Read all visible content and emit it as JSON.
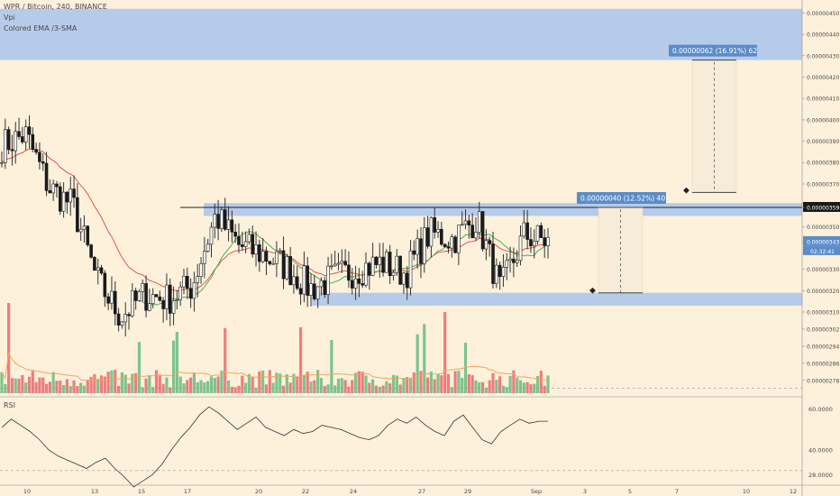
{
  "header": {
    "symbol_line": "WPR / Bitcoin, 240, BINANCE",
    "indicator_1": "Vpi",
    "indicator_2": "Colored EMA /3-SMA"
  },
  "rsi_label": "RSI",
  "colors": {
    "background": "#fdf1dc",
    "zone_fill": "#a9c4ec",
    "up": "#7cc48c",
    "down": "#ef7d7d",
    "ema": "#e8544c",
    "sma": "#4caf50",
    "volume_ma": "#f4a45c",
    "range_fill": "#f7ecd8",
    "measure_label": "#5b8cc8"
  },
  "price_axis": {
    "labels": [
      "0.00000450",
      "0.00000440",
      "0.00000430",
      "0.00000420",
      "0.00000410",
      "0.00000400",
      "0.00000390",
      "0.00000380",
      "0.00000370",
      "0.00000359",
      "0.00000350",
      "0.00000343",
      "0.00000330",
      "0.00000320",
      "0.00000310",
      "0.00000302",
      "0.00000294",
      "0.00000286",
      "0.00000278"
    ],
    "current_price": "0.00000343",
    "countdown": "02:32:41",
    "line_price": "0.00000359"
  },
  "rsi_axis": {
    "labels": [
      "60.0000",
      "40.0000",
      "28.0000"
    ]
  },
  "time_axis": {
    "labels": [
      "10",
      "13",
      "15",
      "17",
      "20",
      "22",
      "24",
      "27",
      "29",
      "Sep",
      "3",
      "5",
      "7",
      "10",
      "12"
    ]
  },
  "measurements": [
    {
      "text": "0.00000040 (12.52%) 40"
    },
    {
      "text": "0.00000062 (16.91%) 62"
    }
  ],
  "chart_data": {
    "type": "candlestick",
    "instrument": "WPR / Bitcoin",
    "timeframe": "240",
    "exchange": "BINANCE",
    "y_range": [
      2.72e-06,
      4.54e-06
    ],
    "horizontal_zones": [
      {
        "from": 4.28e-06,
        "to": 4.52e-06
      },
      {
        "from": 3.55e-06,
        "to": 3.61e-06
      },
      {
        "from": 3.13e-06,
        "to": 3.19e-06
      }
    ],
    "horizontal_line": 3.59e-06,
    "price_range_measures": [
      {
        "from": 3.19e-06,
        "to": 3.59e-06,
        "delta": "0.00000040",
        "percent": "12.52%",
        "ticks": 40
      },
      {
        "from": 3.66e-06,
        "to": 4.28e-06,
        "delta": "0.00000062",
        "percent": "16.91%",
        "ticks": 62
      }
    ],
    "close_path": [
      [
        "Aug 9",
        3.88e-06
      ],
      [
        "Aug 10",
        3.93e-06
      ],
      [
        "Aug 11",
        3.68e-06
      ],
      [
        "Aug 12",
        3.6e-06
      ],
      [
        "Aug 13",
        3.25e-06
      ],
      [
        "Aug 14",
        3.08e-06
      ],
      [
        "Aug 15",
        3.18e-06
      ],
      [
        "Aug 16",
        3.16e-06
      ],
      [
        "Aug 17",
        3.22e-06
      ],
      [
        "Aug 18",
        3.55e-06
      ],
      [
        "Aug 19",
        3.41e-06
      ],
      [
        "Aug 20",
        3.37e-06
      ],
      [
        "Aug 21",
        3.31e-06
      ],
      [
        "Aug 22",
        3.21e-06
      ],
      [
        "Aug 23",
        3.26e-06
      ],
      [
        "Aug 24",
        3.3e-06
      ],
      [
        "Aug 25",
        3.33e-06
      ],
      [
        "Aug 26",
        3.28e-06
      ],
      [
        "Aug 27",
        3.47e-06
      ],
      [
        "Aug 28",
        3.44e-06
      ],
      [
        "Aug 29",
        3.54e-06
      ],
      [
        "Aug 30",
        3.2e-06
      ],
      [
        "Aug 31",
        3.46e-06
      ],
      [
        "Sep 1",
        3.43e-06
      ]
    ],
    "rsi": {
      "levels": [
        70,
        30
      ],
      "values": [
        51,
        55,
        52,
        49,
        45,
        40,
        37,
        35,
        33,
        31,
        34,
        36,
        31,
        27,
        22,
        25,
        28,
        33,
        40,
        46,
        51,
        57,
        61,
        58,
        54,
        50,
        53,
        56,
        51,
        49,
        47,
        50,
        48,
        49,
        52,
        51,
        50,
        48,
        46,
        45,
        47,
        52,
        55,
        53,
        56,
        52,
        49,
        47,
        54,
        57,
        51,
        45,
        43,
        49,
        52,
        55,
        53,
        54,
        54
      ]
    }
  }
}
